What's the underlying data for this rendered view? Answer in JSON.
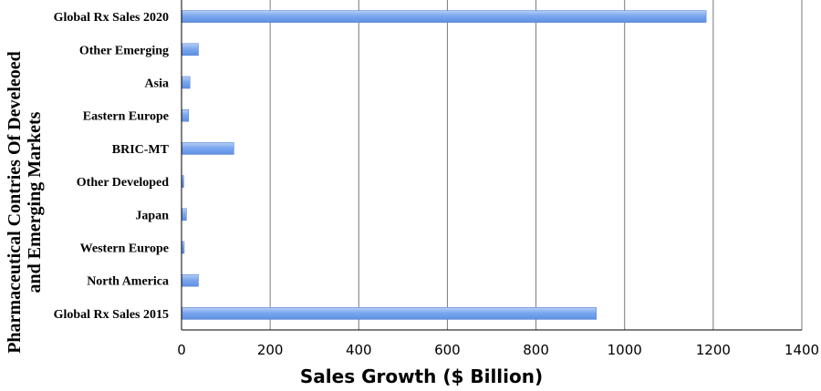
{
  "chart_data": {
    "type": "bar",
    "orientation": "horizontal",
    "categories": [
      "Global Rx Sales 2015",
      "North America",
      "Western Europe",
      "Japan",
      "Other Developed",
      "BRIC-MT",
      "Eastern Europe",
      "Asia",
      "Other Emerging",
      "Global Rx Sales 2020"
    ],
    "values": [
      935,
      37,
      5,
      10,
      4,
      117,
      15,
      18,
      37,
      1183
    ],
    "xlabel": "Sales Growth ($ Billion)",
    "ylabel_line1": "Pharmaceutical Contries Of Develeoed",
    "ylabel_line2": "and Emerging Markets",
    "xlim": [
      0,
      1400
    ],
    "xticks": [
      "0",
      "200",
      "400",
      "600",
      "800",
      "1000",
      "1200",
      "1400"
    ],
    "tick_values": [
      0,
      200,
      400,
      600,
      800,
      1000,
      1200,
      1400
    ],
    "grid": "vertical",
    "legend": "none",
    "bar_color": "#6f9eea",
    "bar_color_light": "#b6cff6"
  }
}
